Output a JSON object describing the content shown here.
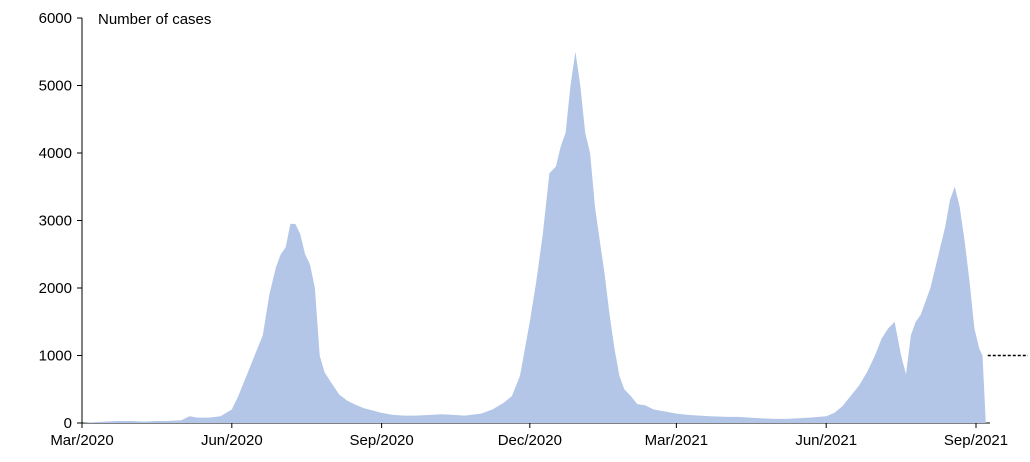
{
  "chart_data": {
    "type": "area",
    "title": "",
    "xlabel": "",
    "ylabel": "Number of cases",
    "ylim": [
      0,
      6000
    ],
    "y_ticks": [
      0,
      1000,
      2000,
      3000,
      4000,
      5000,
      6000
    ],
    "x_range": [
      "2020-03-01",
      "2021-09-07"
    ],
    "x_ticks": [
      {
        "date": "2020-03-01",
        "label": "Mar/2020"
      },
      {
        "date": "2020-06-01",
        "label": "Jun/2020"
      },
      {
        "date": "2020-09-01",
        "label": "Sep/2020"
      },
      {
        "date": "2020-12-01",
        "label": "Dec/2020"
      },
      {
        "date": "2021-03-01",
        "label": "Mar/2021"
      },
      {
        "date": "2021-06-01",
        "label": "Jun/2021"
      },
      {
        "date": "2021-09-01",
        "label": "Sep/2021"
      }
    ],
    "grid": false,
    "fill_color": "#b3c6e7",
    "reference_line": {
      "y": 1000,
      "style": "dashed",
      "color": "#000000"
    },
    "series": [
      {
        "x": [
          "2020-03-01",
          "2020-03-08",
          "2020-03-15",
          "2020-03-22",
          "2020-04-01",
          "2020-04-08",
          "2020-04-15",
          "2020-04-22",
          "2020-05-01",
          "2020-05-06",
          "2020-05-11",
          "2020-05-18",
          "2020-05-25",
          "2020-06-01",
          "2020-06-05",
          "2020-06-10",
          "2020-06-15",
          "2020-06-20",
          "2020-06-24",
          "2020-06-28",
          "2020-07-01",
          "2020-07-04",
          "2020-07-07",
          "2020-07-10",
          "2020-07-13",
          "2020-07-16",
          "2020-07-19",
          "2020-07-22",
          "2020-07-25",
          "2020-07-28",
          "2020-08-01",
          "2020-08-06",
          "2020-08-11",
          "2020-08-16",
          "2020-08-21",
          "2020-08-26",
          "2020-09-01",
          "2020-09-08",
          "2020-09-15",
          "2020-09-22",
          "2020-10-01",
          "2020-10-08",
          "2020-10-15",
          "2020-10-22",
          "2020-11-01",
          "2020-11-08",
          "2020-11-15",
          "2020-11-20",
          "2020-11-25",
          "2020-12-01",
          "2020-12-05",
          "2020-12-09",
          "2020-12-13",
          "2020-12-17",
          "2020-12-20",
          "2020-12-23",
          "2020-12-26",
          "2020-12-29",
          "2021-01-01",
          "2021-01-04",
          "2021-01-07",
          "2021-01-10",
          "2021-01-13",
          "2021-01-16",
          "2021-01-19",
          "2021-01-22",
          "2021-01-25",
          "2021-01-28",
          "2021-02-01",
          "2021-02-05",
          "2021-02-10",
          "2021-02-15",
          "2021-02-20",
          "2021-03-01",
          "2021-03-08",
          "2021-03-15",
          "2021-03-22",
          "2021-04-01",
          "2021-04-08",
          "2021-04-15",
          "2021-04-22",
          "2021-05-01",
          "2021-05-08",
          "2021-05-15",
          "2021-05-22",
          "2021-06-01",
          "2021-06-06",
          "2021-06-11",
          "2021-06-16",
          "2021-06-21",
          "2021-06-26",
          "2021-07-01",
          "2021-07-05",
          "2021-07-09",
          "2021-07-13",
          "2021-07-17",
          "2021-07-20",
          "2021-07-23",
          "2021-07-26",
          "2021-07-29",
          "2021-08-01",
          "2021-08-04",
          "2021-08-07",
          "2021-08-10",
          "2021-08-13",
          "2021-08-16",
          "2021-08-19",
          "2021-08-22",
          "2021-08-25",
          "2021-08-28",
          "2021-08-31",
          "2021-09-03",
          "2021-09-05",
          "2021-09-07"
        ],
        "values": [
          0,
          10,
          20,
          30,
          30,
          20,
          30,
          30,
          40,
          100,
          80,
          80,
          100,
          200,
          400,
          700,
          1000,
          1300,
          1900,
          2300,
          2500,
          2600,
          2950,
          2950,
          2800,
          2500,
          2350,
          2000,
          1000,
          750,
          600,
          420,
          330,
          270,
          220,
          190,
          150,
          120,
          110,
          110,
          120,
          130,
          120,
          110,
          140,
          200,
          300,
          400,
          700,
          1500,
          2100,
          2800,
          3700,
          3800,
          4100,
          4300,
          5000,
          5500,
          5000,
          4300,
          4000,
          3200,
          2700,
          2200,
          1600,
          1100,
          700,
          500,
          400,
          280,
          260,
          200,
          180,
          140,
          120,
          110,
          100,
          90,
          90,
          80,
          70,
          60,
          60,
          70,
          80,
          100,
          150,
          250,
          400,
          550,
          750,
          1000,
          1250,
          1400,
          1500,
          1000,
          720,
          1300,
          1500,
          1600,
          1800,
          2000,
          2300,
          2600,
          2900,
          3300,
          3500,
          3200,
          2700,
          2100,
          1400,
          1100,
          1000,
          0
        ]
      }
    ]
  }
}
